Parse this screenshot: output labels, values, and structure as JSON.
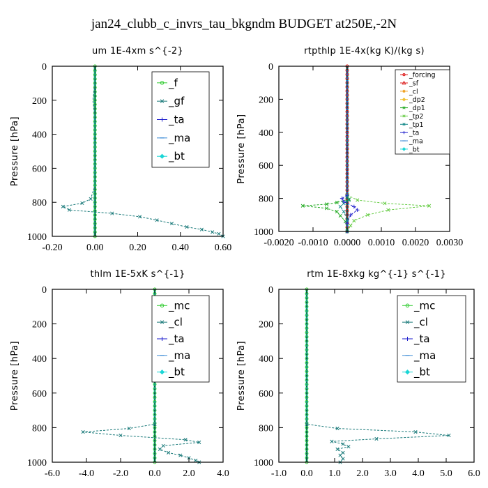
{
  "figure": {
    "title": "jan24_clubb_c_invrs_tau_bkgndm  BUDGET at250E,-2N"
  },
  "chart_data": [
    {
      "type": "line",
      "title": "um   1E-4xm s^{-2}",
      "ylabel": "Pressure [hPa]",
      "xlim": [
        -0.2,
        0.6
      ],
      "ylim": [
        1000,
        0
      ],
      "xticks": [
        "-0.20",
        "0.00",
        "0.20",
        "0.40",
        "0.60"
      ],
      "xtick_values": [
        -0.2,
        0.0,
        0.2,
        0.4,
        0.6
      ],
      "yticks": [
        "0",
        "200",
        "400",
        "600",
        "800",
        "1000"
      ],
      "ytick_values": [
        0,
        200,
        400,
        600,
        800,
        1000
      ],
      "legend_style": "big",
      "legend_entries": [
        "_f",
        "_gf",
        "_ta",
        "_ma",
        "_bt"
      ],
      "series": [
        {
          "name": "_f",
          "color": "#33cc33",
          "marker": "circle",
          "profile": "zero",
          "x": [],
          "y": []
        },
        {
          "name": "_gf",
          "color": "#1a7a7a",
          "marker": "cross",
          "profile": "points",
          "x": [
            0.0,
            0.0,
            -0.01,
            -0.005,
            0.0,
            0.0,
            0.0,
            0.0,
            0.0,
            -0.02,
            -0.06,
            -0.15,
            -0.12,
            0.08,
            0.21,
            0.29,
            0.36,
            0.43,
            0.5,
            0.55,
            0.58,
            0.6
          ],
          "y": [
            0,
            100,
            200,
            250,
            300,
            400,
            500,
            600,
            700,
            780,
            805,
            825,
            845,
            865,
            885,
            905,
            925,
            945,
            960,
            975,
            985,
            1000
          ]
        },
        {
          "name": "_ta",
          "color": "#1a1acc",
          "marker": "plus",
          "profile": "zero",
          "x": [],
          "y": []
        },
        {
          "name": "_ma",
          "color": "#3a8ad6",
          "marker": "dash",
          "profile": "zero",
          "x": [],
          "y": []
        },
        {
          "name": "_bt",
          "color": "#1ad6d6",
          "marker": "diamond",
          "profile": "zero",
          "x": [],
          "y": []
        }
      ]
    },
    {
      "type": "line",
      "title": "rtpthlp   1E-4x(kg K)/(kg s)",
      "ylabel": "Pressure [hPa]",
      "xlim": [
        -0.002,
        0.003
      ],
      "ylim": [
        1000,
        0
      ],
      "xticks": [
        "-0.0020",
        "-0.0010",
        "0.0000",
        "0.0010",
        "0.0020",
        "0.0030"
      ],
      "xtick_values": [
        -0.002,
        -0.001,
        0.0,
        0.001,
        0.002,
        0.003
      ],
      "yticks": [
        "0",
        "200",
        "400",
        "600",
        "800",
        "1000"
      ],
      "ytick_values": [
        0,
        200,
        400,
        600,
        800,
        1000
      ],
      "legend_style": "small",
      "legend_entries": [
        "_forcing",
        "_sf",
        "_cl",
        "_dp2",
        "_dp1",
        "_tp2",
        "_tp1",
        "_ta",
        "_ma",
        "_bt"
      ],
      "series": [
        {
          "name": "_forcing",
          "color": "#dd1111",
          "marker": "circle",
          "profile": "zero",
          "x": [],
          "y": []
        },
        {
          "name": "_sf",
          "color": "#dd2222",
          "marker": "triangle",
          "profile": "zero",
          "x": [],
          "y": []
        },
        {
          "name": "_cl",
          "color": "#f0a020",
          "marker": "star",
          "profile": "zero",
          "x": [],
          "y": []
        },
        {
          "name": "_dp2",
          "color": "#f0c030",
          "marker": "diamond",
          "profile": "zero",
          "x": [],
          "y": []
        },
        {
          "name": "_dp1",
          "color": "#22aa22",
          "marker": "cross",
          "profile": "points",
          "x": [
            0.0,
            0.0,
            0.0,
            5e-05,
            -0.0003,
            -0.0006,
            -0.0013,
            -0.0006,
            -0.0003,
            -0.0002,
            -5e-05,
            0.0
          ],
          "y": [
            0,
            400,
            780,
            805,
            825,
            835,
            845,
            860,
            880,
            905,
            940,
            1000
          ]
        },
        {
          "name": "_tp2",
          "color": "#66cc44",
          "marker": "cross",
          "profile": "points",
          "x": [
            0.0,
            0.0,
            0.0,
            0.0003,
            0.0011,
            0.0024,
            0.0012,
            0.0006,
            0.0002,
            0.0001,
            0.0
          ],
          "y": [
            0,
            400,
            780,
            810,
            830,
            845,
            870,
            900,
            935,
            965,
            1000
          ]
        },
        {
          "name": "_tp1",
          "color": "#128888",
          "marker": "cross",
          "profile": "points",
          "x": [
            0.0,
            0.0,
            0.0,
            5e-05,
            -0.0001,
            -0.0002,
            -0.0001,
            0.0,
            0.0
          ],
          "y": [
            0,
            400,
            790,
            810,
            830,
            850,
            880,
            930,
            1000
          ]
        },
        {
          "name": "_ta",
          "color": "#2222cc",
          "marker": "plus",
          "profile": "points",
          "x": [
            0.0,
            0.0,
            0.0,
            -0.00015,
            -0.0001,
            0.0002,
            0.0003,
            0.0001,
            0.0,
            0.0
          ],
          "y": [
            0,
            400,
            780,
            800,
            820,
            850,
            870,
            900,
            950,
            1000
          ]
        },
        {
          "name": "_ma",
          "color": "#3a8ad6",
          "marker": "dash",
          "profile": "zero",
          "x": [],
          "y": []
        },
        {
          "name": "_bt",
          "color": "#1ad6d6",
          "marker": "diamond",
          "profile": "zero",
          "x": [],
          "y": []
        }
      ]
    },
    {
      "type": "line",
      "title": "thlm   1E-5xK  s^{-1}",
      "ylabel": "Pressure [hPa]",
      "xlim": [
        -6.0,
        4.0
      ],
      "ylim": [
        1000,
        0
      ],
      "xticks": [
        "-6.0",
        "-4.0",
        "-2.0",
        "0.0",
        "2.0",
        "4.0"
      ],
      "xtick_values": [
        -6.0,
        -4.0,
        -2.0,
        0.0,
        2.0,
        4.0
      ],
      "yticks": [
        "0",
        "200",
        "400",
        "600",
        "800",
        "1000"
      ],
      "ytick_values": [
        0,
        200,
        400,
        600,
        800,
        1000
      ],
      "legend_style": "big",
      "legend_entries": [
        "_mc",
        "_cl",
        "_ta",
        "_ma",
        "_bt"
      ],
      "series": [
        {
          "name": "_mc",
          "color": "#33cc33",
          "marker": "circle",
          "profile": "zero",
          "x": [],
          "y": []
        },
        {
          "name": "_cl",
          "color": "#1a7a7a",
          "marker": "cross",
          "profile": "points",
          "x": [
            0.0,
            0.0,
            0.0,
            -1.5,
            -4.2,
            -2.0,
            1.8,
            2.6,
            0.5,
            0.3,
            0.8,
            1.5,
            2.0,
            2.4,
            2.6
          ],
          "y": [
            0,
            400,
            780,
            805,
            825,
            845,
            870,
            885,
            905,
            925,
            945,
            960,
            975,
            990,
            1000
          ]
        },
        {
          "name": "_ta",
          "color": "#1a1acc",
          "marker": "plus",
          "profile": "zero",
          "x": [],
          "y": []
        },
        {
          "name": "_ma",
          "color": "#3a8ad6",
          "marker": "dash",
          "profile": "zero",
          "x": [],
          "y": []
        },
        {
          "name": "_bt",
          "color": "#1ad6d6",
          "marker": "diamond",
          "profile": "zero",
          "x": [],
          "y": []
        }
      ]
    },
    {
      "type": "line",
      "title": "rtm   1E-8xkg kg^{-1} s^{-1}",
      "ylabel": "Pressure [hPa]",
      "xlim": [
        -1.0,
        6.0
      ],
      "ylim": [
        1000,
        0
      ],
      "xticks": [
        "-1.0",
        "0.0",
        "1.0",
        "2.0",
        "3.0",
        "4.0",
        "5.0",
        "6.0"
      ],
      "xtick_values": [
        -1.0,
        0.0,
        1.0,
        2.0,
        3.0,
        4.0,
        5.0,
        6.0
      ],
      "yticks": [
        "0",
        "200",
        "400",
        "600",
        "800",
        "1000"
      ],
      "ytick_values": [
        0,
        200,
        400,
        600,
        800,
        1000
      ],
      "legend_style": "big",
      "legend_entries": [
        "_mc",
        "_cl",
        "_ta",
        "_ma",
        "_bt"
      ],
      "series": [
        {
          "name": "_mc",
          "color": "#33cc33",
          "marker": "circle",
          "profile": "zero",
          "x": [],
          "y": []
        },
        {
          "name": "_cl",
          "color": "#1a7a7a",
          "marker": "cross",
          "profile": "points",
          "x": [
            0.0,
            0.0,
            0.0,
            1.1,
            3.9,
            5.1,
            2.5,
            0.9,
            1.3,
            1.5,
            1.1,
            1.3,
            1.2,
            1.3,
            1.2
          ],
          "y": [
            0,
            400,
            780,
            805,
            825,
            845,
            865,
            880,
            895,
            910,
            925,
            945,
            960,
            980,
            1000
          ]
        },
        {
          "name": "_ta",
          "color": "#1a1acc",
          "marker": "plus",
          "profile": "zero",
          "x": [],
          "y": []
        },
        {
          "name": "_ma",
          "color": "#3a8ad6",
          "marker": "dash",
          "profile": "zero",
          "x": [],
          "y": []
        },
        {
          "name": "_bt",
          "color": "#1ad6d6",
          "marker": "diamond",
          "profile": "zero",
          "x": [],
          "y": []
        }
      ]
    }
  ]
}
